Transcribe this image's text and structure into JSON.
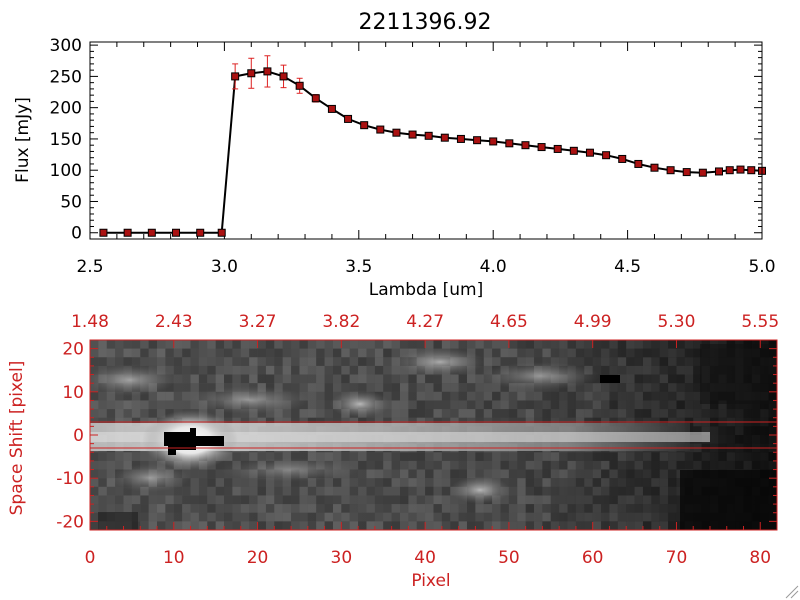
{
  "chart_data": [
    {
      "type": "line",
      "title": "2211396.92",
      "xlabel": "Lambda [um]",
      "ylabel": "Flux [mJy]",
      "xlim": [
        2.5,
        5.0
      ],
      "ylim": [
        -10,
        305
      ],
      "xticks": [
        "2.5",
        "3.0",
        "3.5",
        "4.0",
        "4.5",
        "5.0"
      ],
      "yticks": [
        "0",
        "50",
        "100",
        "150",
        "200",
        "250",
        "300"
      ],
      "line_color": "#000000",
      "marker_color": "#aa1111",
      "errorbar_color": "#dd2222",
      "series": [
        {
          "x": [
            2.55,
            2.64,
            2.73,
            2.82,
            2.91,
            2.99,
            3.04,
            3.1,
            3.16,
            3.22,
            3.28,
            3.34,
            3.4,
            3.46,
            3.52,
            3.58,
            3.64,
            3.7,
            3.76,
            3.82,
            3.88,
            3.94,
            4.0,
            4.06,
            4.12,
            4.18,
            4.24,
            4.3,
            4.36,
            4.42,
            4.48,
            4.54,
            4.6,
            4.66,
            4.72,
            4.78,
            4.84,
            4.88,
            4.92,
            4.96,
            5.0
          ],
          "y": [
            0,
            0,
            0,
            0,
            0,
            0,
            250,
            255,
            258,
            250,
            235,
            215,
            198,
            182,
            172,
            165,
            160,
            157,
            155,
            152,
            150,
            148,
            146,
            143,
            140,
            137,
            134,
            131,
            128,
            124,
            118,
            110,
            104,
            100,
            97,
            96,
            98,
            100,
            101,
            100,
            99
          ],
          "err": [
            0,
            0,
            0,
            0,
            0,
            0,
            20,
            24,
            25,
            18,
            12,
            6,
            4,
            3,
            3,
            2,
            2,
            2,
            2,
            2,
            2,
            2,
            2,
            2,
            2,
            2,
            2,
            2,
            2,
            2,
            2,
            2,
            2,
            2,
            2,
            2,
            2,
            2,
            2,
            2,
            2
          ]
        }
      ]
    },
    {
      "type": "heatmap",
      "xlabel": "Pixel",
      "ylabel": "Space Shift [pixel]",
      "xlim": [
        0,
        82
      ],
      "ylim": [
        -22,
        22
      ],
      "xticks": [
        "0",
        "10",
        "20",
        "30",
        "40",
        "50",
        "60",
        "70",
        "80"
      ],
      "yticks": [
        "-20",
        "-10",
        "0",
        "10",
        "20"
      ],
      "top_axis_ticks": [
        "1.48",
        "2.43",
        "3.27",
        "3.82",
        "4.27",
        "4.65",
        "4.99",
        "5.30",
        "5.55"
      ],
      "extraction_window": [
        -3,
        3
      ],
      "axis_color": "#cc2222",
      "colormap": "grayscale"
    }
  ]
}
